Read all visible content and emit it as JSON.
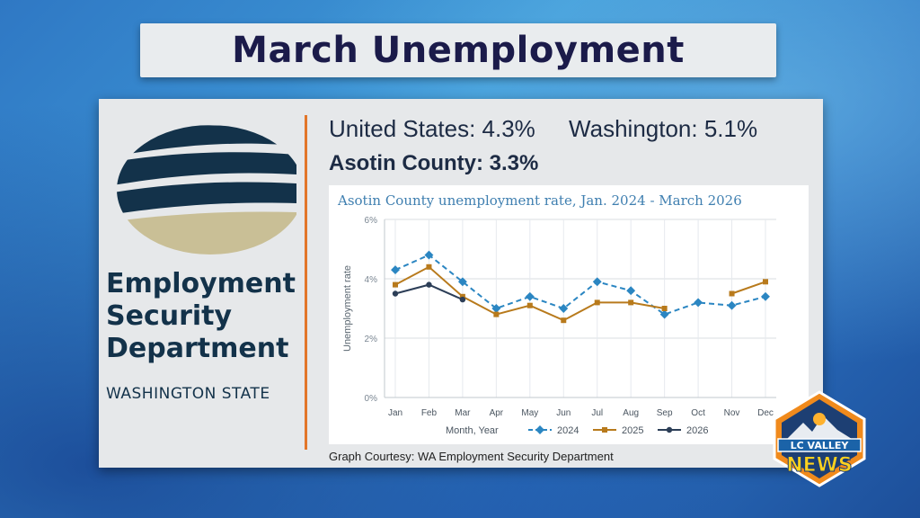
{
  "title": "March Unemployment",
  "stats": {
    "us": "United States: 4.3%",
    "washington": "Washington: 5.1%",
    "county": "Asotin County: 3.3%"
  },
  "agency": {
    "line1": "Employment",
    "line2": "Security",
    "line3": "Department",
    "state": "WASHINGTON STATE"
  },
  "courtesy": "Graph Courtesy: WA Employment Security Department",
  "news_logo": {
    "line1": "LC VALLEY",
    "line2": "NEWS"
  },
  "colors": {
    "title_text": "#1b1b4a",
    "divider": "#e2762a",
    "series_2024": "#2b86c2",
    "series_2025": "#b87a1c",
    "series_2026": "#2c3e57"
  },
  "chart_data": {
    "type": "line",
    "title": "Asotin County unemployment rate, Jan. 2024 - March 2026",
    "xlabel": "Month, Year",
    "ylabel": "Unemployment rate",
    "categories": [
      "Jan",
      "Feb",
      "Mar",
      "Apr",
      "May",
      "Jun",
      "Jul",
      "Aug",
      "Sep",
      "Oct",
      "Nov",
      "Dec"
    ],
    "ylim": [
      0,
      6
    ],
    "yticks": [
      "0%",
      "2%",
      "4%",
      "6%"
    ],
    "grid": true,
    "legend": "bottom",
    "series": [
      {
        "name": "2024",
        "values": [
          4.3,
          4.8,
          3.9,
          3.0,
          3.4,
          3.0,
          3.9,
          3.6,
          2.8,
          3.2,
          3.1,
          3.4
        ]
      },
      {
        "name": "2025",
        "values": [
          3.8,
          4.4,
          3.4,
          2.8,
          3.1,
          2.6,
          3.2,
          3.2,
          3.0,
          null,
          3.5,
          3.9
        ]
      },
      {
        "name": "2026",
        "values": [
          3.5,
          3.8,
          3.3,
          null,
          null,
          null,
          null,
          null,
          null,
          null,
          null,
          null
        ]
      }
    ]
  }
}
